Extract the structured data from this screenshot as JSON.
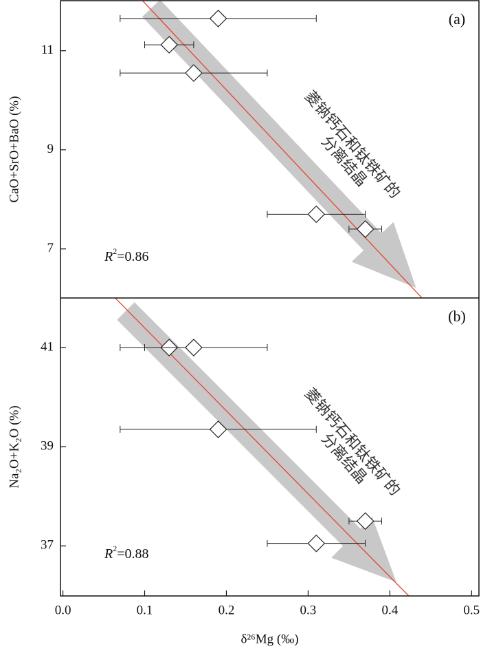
{
  "chart_data": [
    {
      "type": "scatter",
      "label": "(a)",
      "ylabel": "CaO+SrO+BaO (%)",
      "xlim": [
        -0.003,
        0.509
      ],
      "ylim": [
        6.01,
        12.01
      ],
      "yticks": [
        7,
        9,
        11
      ],
      "x": [
        0.19,
        0.13,
        0.16,
        0.31,
        0.37
      ],
      "values": [
        11.65,
        11.12,
        10.55,
        7.7,
        7.4
      ],
      "xerr": [
        0.12,
        0.03,
        0.09,
        0.06,
        0.02
      ],
      "fit": {
        "slope": -17.55,
        "intercept": 13.72,
        "color": "#e8442e"
      },
      "r2": {
        "symbol": "R",
        "power": "2",
        "text": "=0.86"
      },
      "annotation": [
        "菱钠钙石和钛铁矿的",
        "分离结晶"
      ]
    },
    {
      "type": "scatter",
      "label": "(b)",
      "ylabel": "Na₂O+K₂O (%)",
      "xlabel": "δ²⁶Mg (‰)",
      "xlim": [
        -0.003,
        0.509
      ],
      "ylim": [
        35.99,
        42
      ],
      "yticks": [
        37,
        39,
        41
      ],
      "xticks": [
        {
          "value": 0,
          "label": "0.0"
        },
        0.1,
        0.2,
        0.3,
        0.4,
        0.5
      ],
      "x": [
        0.13,
        0.16,
        0.19,
        0.37,
        0.31
      ],
      "values": [
        41.0,
        41.0,
        39.35,
        37.5,
        37.05
      ],
      "xerr": [
        0.03,
        0.09,
        0.12,
        0.02,
        0.06
      ],
      "fit": {
        "slope": -16.73,
        "intercept": 43.07,
        "color": "#e8442e"
      },
      "r2": {
        "symbol": "R",
        "power": "2",
        "text": "=0.88"
      },
      "annotation": [
        "菱钠钙石和钛铁矿的",
        "分离结晶"
      ]
    }
  ]
}
